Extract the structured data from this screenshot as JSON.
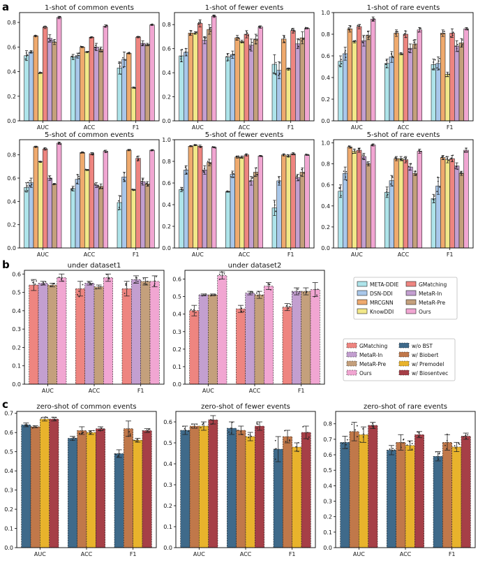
{
  "panel_letters": [
    "a",
    "b",
    "c"
  ],
  "colors": {
    "META-DDIE": "#aee4ea",
    "DSN-DDI": "#a9c7ea",
    "MRCGNN": "#efaa6e",
    "KnowDDI": "#f2e889",
    "GMatching": "#ee8580",
    "MetaR-In": "#c39fd0",
    "MetaR-Pre": "#c4a07c",
    "Ours": "#f1a6d2",
    "w/o BST": "#3f6a8a",
    "w/ Biobert": "#c0784a",
    "w/ Premodel": "#e8b32c",
    "w/ Biosentvec": "#a63f47"
  },
  "legends": {
    "methods": [
      "META-DDIE",
      "DSN-DDI",
      "MRCGNN",
      "KnowDDI",
      "GMatching",
      "MetaR-In",
      "MetaR-Pre",
      "Ours"
    ],
    "dataset_methods": [
      "GMatching",
      "MetaR-In",
      "MetaR-Pre",
      "Ours"
    ],
    "ablation": [
      "w/o BST",
      "w/ Biobert",
      "w/ Premodel",
      "w/ Biosentvec"
    ]
  },
  "chart_data": [
    {
      "id": "a1",
      "type": "bar",
      "title": "1-shot of common events",
      "categories": [
        "AUC",
        "ACC",
        "F1"
      ],
      "ylim": [
        0,
        0.88
      ],
      "yticks": [
        0.0,
        0.2,
        0.4,
        0.6,
        0.8
      ],
      "series": [
        {
          "name": "META-DDIE",
          "values": [
            0.53,
            0.52,
            0.43
          ],
          "err": [
            0.04,
            0.02,
            0.05
          ]
        },
        {
          "name": "DSN-DDI",
          "values": [
            0.56,
            0.53,
            0.5
          ],
          "err": [
            0.01,
            0.02,
            0.06
          ]
        },
        {
          "name": "MRCGNN",
          "values": [
            0.69,
            0.6,
            0.55
          ],
          "err": [
            0.005,
            0.005,
            0.005
          ]
        },
        {
          "name": "KnowDDI",
          "values": [
            0.39,
            0.56,
            0.27
          ],
          "err": [
            0.005,
            0.005,
            0.005
          ]
        },
        {
          "name": "GMatching",
          "values": [
            0.76,
            0.68,
            0.68
          ],
          "err": [
            0.01,
            0.005,
            0.005
          ]
        },
        {
          "name": "MetaR-In",
          "values": [
            0.67,
            0.6,
            0.63
          ],
          "err": [
            0.03,
            0.03,
            0.02
          ]
        },
        {
          "name": "MetaR-Pre",
          "values": [
            0.64,
            0.58,
            0.62
          ],
          "err": [
            0.02,
            0.02,
            0.01
          ]
        },
        {
          "name": "Ours",
          "values": [
            0.84,
            0.77,
            0.78
          ],
          "err": [
            0.01,
            0.01,
            0.005
          ]
        }
      ]
    },
    {
      "id": "a2",
      "type": "bar",
      "title": "1-shot of fewer events",
      "categories": [
        "AUC",
        "ACC",
        "F1"
      ],
      "ylim": [
        0,
        0.9
      ],
      "yticks": [
        0.0,
        0.2,
        0.4,
        0.6,
        0.8
      ],
      "series": [
        {
          "name": "META-DDIE",
          "values": [
            0.54,
            0.53,
            0.47
          ],
          "err": [
            0.05,
            0.03,
            0.08
          ]
        },
        {
          "name": "DSN-DDI",
          "values": [
            0.57,
            0.55,
            0.42
          ],
          "err": [
            0.03,
            0.03,
            0.07
          ]
        },
        {
          "name": "MRCGNN",
          "values": [
            0.73,
            0.69,
            0.68
          ],
          "err": [
            0.02,
            0.02,
            0.03
          ]
        },
        {
          "name": "KnowDDI",
          "values": [
            0.73,
            0.66,
            0.43
          ],
          "err": [
            0.01,
            0.01,
            0.01
          ]
        },
        {
          "name": "GMatching",
          "values": [
            0.81,
            0.72,
            0.75
          ],
          "err": [
            0.03,
            0.03,
            0.02
          ]
        },
        {
          "name": "MetaR-In",
          "values": [
            0.67,
            0.63,
            0.64
          ],
          "err": [
            0.03,
            0.05,
            0.04
          ]
        },
        {
          "name": "MetaR-Pre",
          "values": [
            0.76,
            0.68,
            0.69
          ],
          "err": [
            0.04,
            0.04,
            0.05
          ]
        },
        {
          "name": "Ours",
          "values": [
            0.87,
            0.78,
            0.77
          ],
          "err": [
            0.01,
            0.01,
            0.005
          ]
        }
      ]
    },
    {
      "id": "a3",
      "type": "bar",
      "title": "1-shot of rare events",
      "categories": [
        "AUC",
        "ACC",
        "F1"
      ],
      "ylim": [
        0,
        1.0
      ],
      "yticks": [
        0.0,
        0.2,
        0.4,
        0.6,
        0.8,
        1.0
      ],
      "series": [
        {
          "name": "META-DDIE",
          "values": [
            0.55,
            0.53,
            0.52
          ],
          "err": [
            0.05,
            0.04,
            0.05
          ]
        },
        {
          "name": "DSN-DDI",
          "values": [
            0.62,
            0.59,
            0.53
          ],
          "err": [
            0.06,
            0.05,
            0.06
          ]
        },
        {
          "name": "MRCGNN",
          "values": [
            0.85,
            0.81,
            0.81
          ],
          "err": [
            0.03,
            0.03,
            0.03
          ]
        },
        {
          "name": "KnowDDI",
          "values": [
            0.73,
            0.62,
            0.43
          ],
          "err": [
            0.01,
            0.01,
            0.02
          ]
        },
        {
          "name": "GMatching",
          "values": [
            0.87,
            0.8,
            0.81
          ],
          "err": [
            0.02,
            0.03,
            0.04
          ]
        },
        {
          "name": "MetaR-In",
          "values": [
            0.74,
            0.67,
            0.69
          ],
          "err": [
            0.05,
            0.04,
            0.05
          ]
        },
        {
          "name": "MetaR-Pre",
          "values": [
            0.79,
            0.71,
            0.72
          ],
          "err": [
            0.04,
            0.04,
            0.04
          ]
        },
        {
          "name": "Ours",
          "values": [
            0.94,
            0.84,
            0.85
          ],
          "err": [
            0.02,
            0.02,
            0.01
          ]
        }
      ]
    },
    {
      "id": "a4",
      "type": "bar",
      "title": "5-shot of common events",
      "categories": [
        "AUC",
        "ACC",
        "F1"
      ],
      "ylim": [
        0,
        0.93
      ],
      "yticks": [
        0.0,
        0.2,
        0.4,
        0.6,
        0.8
      ],
      "series": [
        {
          "name": "META-DDIE",
          "values": [
            0.52,
            0.51,
            0.39
          ],
          "err": [
            0.04,
            0.02,
            0.06
          ]
        },
        {
          "name": "DSN-DDI",
          "values": [
            0.56,
            0.59,
            0.61
          ],
          "err": [
            0.04,
            0.04,
            0.04
          ]
        },
        {
          "name": "MRCGNN",
          "values": [
            0.87,
            0.82,
            0.84
          ],
          "err": [
            0.005,
            0.005,
            0.005
          ]
        },
        {
          "name": "KnowDDI",
          "values": [
            0.74,
            0.67,
            0.5
          ],
          "err": [
            0.005,
            0.005,
            0.005
          ]
        },
        {
          "name": "GMatching",
          "values": [
            0.85,
            0.81,
            0.77
          ],
          "err": [
            0.01,
            0.01,
            0.02
          ]
        },
        {
          "name": "MetaR-In",
          "values": [
            0.6,
            0.54,
            0.57
          ],
          "err": [
            0.02,
            0.02,
            0.03
          ]
        },
        {
          "name": "MetaR-Pre",
          "values": [
            0.55,
            0.53,
            0.55
          ],
          "err": [
            0.005,
            0.02,
            0.02
          ]
        },
        {
          "name": "Ours",
          "values": [
            0.9,
            0.83,
            0.84
          ],
          "err": [
            0.01,
            0.01,
            0.005
          ]
        }
      ]
    },
    {
      "id": "a5",
      "type": "bar",
      "title": "5-shot of fewer events",
      "categories": [
        "AUC",
        "ACC",
        "F1"
      ],
      "ylim": [
        0,
        1.0
      ],
      "yticks": [
        0.0,
        0.2,
        0.4,
        0.6,
        0.8,
        1.0
      ],
      "series": [
        {
          "name": "META-DDIE",
          "values": [
            0.54,
            0.52,
            0.37
          ],
          "err": [
            0.02,
            0.005,
            0.07
          ]
        },
        {
          "name": "DSN-DDI",
          "values": [
            0.72,
            0.68,
            0.62
          ],
          "err": [
            0.04,
            0.03,
            0.04
          ]
        },
        {
          "name": "MRCGNN",
          "values": [
            0.94,
            0.84,
            0.86
          ],
          "err": [
            0.005,
            0.01,
            0.01
          ]
        },
        {
          "name": "KnowDDI",
          "values": [
            0.95,
            0.84,
            0.85
          ],
          "err": [
            0.005,
            0.01,
            0.01
          ]
        },
        {
          "name": "GMatching",
          "values": [
            0.94,
            0.86,
            0.87
          ],
          "err": [
            0.01,
            0.01,
            0.01
          ]
        },
        {
          "name": "MetaR-In",
          "values": [
            0.72,
            0.62,
            0.65
          ],
          "err": [
            0.04,
            0.04,
            0.03
          ]
        },
        {
          "name": "MetaR-Pre",
          "values": [
            0.79,
            0.7,
            0.7
          ],
          "err": [
            0.03,
            0.04,
            0.04
          ]
        },
        {
          "name": "Ours",
          "values": [
            0.93,
            0.85,
            0.86
          ],
          "err": [
            0.005,
            0.005,
            0.005
          ]
        }
      ]
    },
    {
      "id": "a6",
      "type": "bar",
      "title": "5-shot of rare events",
      "categories": [
        "AUC",
        "ACC",
        "F1"
      ],
      "ylim": [
        0,
        1.03
      ],
      "yticks": [
        0.0,
        0.2,
        0.4,
        0.6,
        0.8,
        1.0
      ],
      "series": [
        {
          "name": "META-DDIE",
          "values": [
            0.54,
            0.53,
            0.47
          ],
          "err": [
            0.06,
            0.05,
            0.04
          ]
        },
        {
          "name": "DSN-DDI",
          "values": [
            0.71,
            0.64,
            0.59
          ],
          "err": [
            0.06,
            0.05,
            0.08
          ]
        },
        {
          "name": "MRCGNN",
          "values": [
            0.96,
            0.85,
            0.86
          ],
          "err": [
            0.01,
            0.02,
            0.02
          ]
        },
        {
          "name": "KnowDDI",
          "values": [
            0.92,
            0.85,
            0.84
          ],
          "err": [
            0.02,
            0.02,
            0.03
          ]
        },
        {
          "name": "GMatching",
          "values": [
            0.93,
            0.84,
            0.85
          ],
          "err": [
            0.02,
            0.03,
            0.03
          ]
        },
        {
          "name": "MetaR-In",
          "values": [
            0.87,
            0.77,
            0.78
          ],
          "err": [
            0.03,
            0.03,
            0.03
          ]
        },
        {
          "name": "MetaR-Pre",
          "values": [
            0.8,
            0.71,
            0.71
          ],
          "err": [
            0.02,
            0.02,
            0.02
          ]
        },
        {
          "name": "Ours",
          "values": [
            0.98,
            0.92,
            0.93
          ],
          "err": [
            0.01,
            0.02,
            0.02
          ]
        }
      ]
    },
    {
      "id": "b1",
      "type": "bar",
      "title": "under dataset1",
      "categories": [
        "AUC",
        "ACC",
        "F1"
      ],
      "ylim": [
        0,
        0.62
      ],
      "yticks": [
        0.0,
        0.1,
        0.2,
        0.3,
        0.4,
        0.5,
        0.6
      ],
      "series": [
        {
          "name": "GMatching",
          "values": [
            0.54,
            0.52,
            0.52
          ],
          "err": [
            0.03,
            0.04,
            0.04
          ]
        },
        {
          "name": "MetaR-In",
          "values": [
            0.55,
            0.55,
            0.57
          ],
          "err": [
            0.01,
            0.01,
            0.02
          ]
        },
        {
          "name": "MetaR-Pre",
          "values": [
            0.54,
            0.53,
            0.56
          ],
          "err": [
            0.01,
            0.01,
            0.02
          ]
        },
        {
          "name": "Ours",
          "values": [
            0.58,
            0.58,
            0.56
          ],
          "err": [
            0.02,
            0.02,
            0.03
          ]
        }
      ]
    },
    {
      "id": "b2",
      "type": "bar",
      "title": "under dataset2",
      "categories": [
        "AUC",
        "ACC",
        "F1"
      ],
      "ylim": [
        0,
        0.65
      ],
      "yticks": [
        0.0,
        0.1,
        0.2,
        0.3,
        0.4,
        0.5,
        0.6
      ],
      "series": [
        {
          "name": "GMatching",
          "values": [
            0.42,
            0.43,
            0.44
          ],
          "err": [
            0.03,
            0.02,
            0.02
          ]
        },
        {
          "name": "MetaR-In",
          "values": [
            0.51,
            0.52,
            0.53
          ],
          "err": [
            0.005,
            0.01,
            0.02
          ]
        },
        {
          "name": "MetaR-Pre",
          "values": [
            0.51,
            0.51,
            0.53
          ],
          "err": [
            0.005,
            0.02,
            0.02
          ]
        },
        {
          "name": "Ours",
          "values": [
            0.62,
            0.56,
            0.54
          ],
          "err": [
            0.02,
            0.02,
            0.04
          ]
        }
      ]
    },
    {
      "id": "c1",
      "type": "bar",
      "title": "zero-shot of common events",
      "categories": [
        "AUC",
        "ACC",
        "F1"
      ],
      "ylim": [
        0.0,
        0.71
      ],
      "yticks": [
        0.0,
        0.1,
        0.2,
        0.3,
        0.4,
        0.5,
        0.6,
        0.7
      ],
      "series": [
        {
          "name": "w/o BST",
          "values": [
            0.64,
            0.57,
            0.49
          ],
          "err": [
            0.01,
            0.01,
            0.02
          ]
        },
        {
          "name": "w/ Biobert",
          "values": [
            0.63,
            0.61,
            0.62
          ],
          "err": [
            0.005,
            0.02,
            0.04
          ]
        },
        {
          "name": "w/ Premodel",
          "values": [
            0.67,
            0.6,
            0.56
          ],
          "err": [
            0.01,
            0.01,
            0.01
          ]
        },
        {
          "name": "w/ Biosentvec",
          "values": [
            0.67,
            0.62,
            0.61
          ],
          "err": [
            0.01,
            0.01,
            0.01
          ]
        }
      ]
    },
    {
      "id": "c2",
      "type": "bar",
      "title": "zero-shot of fewer events",
      "categories": [
        "AUC",
        "ACC",
        "F1"
      ],
      "ylim": [
        0.0,
        0.65
      ],
      "yticks": [
        0.0,
        0.1,
        0.2,
        0.3,
        0.4,
        0.5,
        0.6
      ],
      "series": [
        {
          "name": "w/o BST",
          "values": [
            0.56,
            0.57,
            0.47
          ],
          "err": [
            0.02,
            0.03,
            0.06
          ]
        },
        {
          "name": "w/ Biobert",
          "values": [
            0.58,
            0.56,
            0.53
          ],
          "err": [
            0.01,
            0.02,
            0.03
          ]
        },
        {
          "name": "w/ Premodel",
          "values": [
            0.58,
            0.53,
            0.48
          ],
          "err": [
            0.02,
            0.02,
            0.02
          ]
        },
        {
          "name": "w/ Biosentvec",
          "values": [
            0.61,
            0.58,
            0.55
          ],
          "err": [
            0.02,
            0.02,
            0.03
          ]
        }
      ]
    },
    {
      "id": "c3",
      "type": "bar",
      "title": "zero-shot of rare events",
      "categories": [
        "AUC",
        "ACC",
        "F1"
      ],
      "ylim": [
        0.0,
        0.88
      ],
      "yticks": [
        0.0,
        0.1,
        0.2,
        0.3,
        0.4,
        0.5,
        0.6,
        0.7,
        0.8
      ],
      "series": [
        {
          "name": "w/o BST",
          "values": [
            0.68,
            0.63,
            0.59
          ],
          "err": [
            0.04,
            0.03,
            0.03
          ]
        },
        {
          "name": "w/ Biobert",
          "values": [
            0.75,
            0.68,
            0.68
          ],
          "err": [
            0.06,
            0.05,
            0.05
          ]
        },
        {
          "name": "w/ Premodel",
          "values": [
            0.73,
            0.66,
            0.65
          ],
          "err": [
            0.05,
            0.03,
            0.03
          ]
        },
        {
          "name": "w/ Biosentvec",
          "values": [
            0.79,
            0.73,
            0.72
          ],
          "err": [
            0.02,
            0.02,
            0.02
          ]
        }
      ]
    }
  ]
}
